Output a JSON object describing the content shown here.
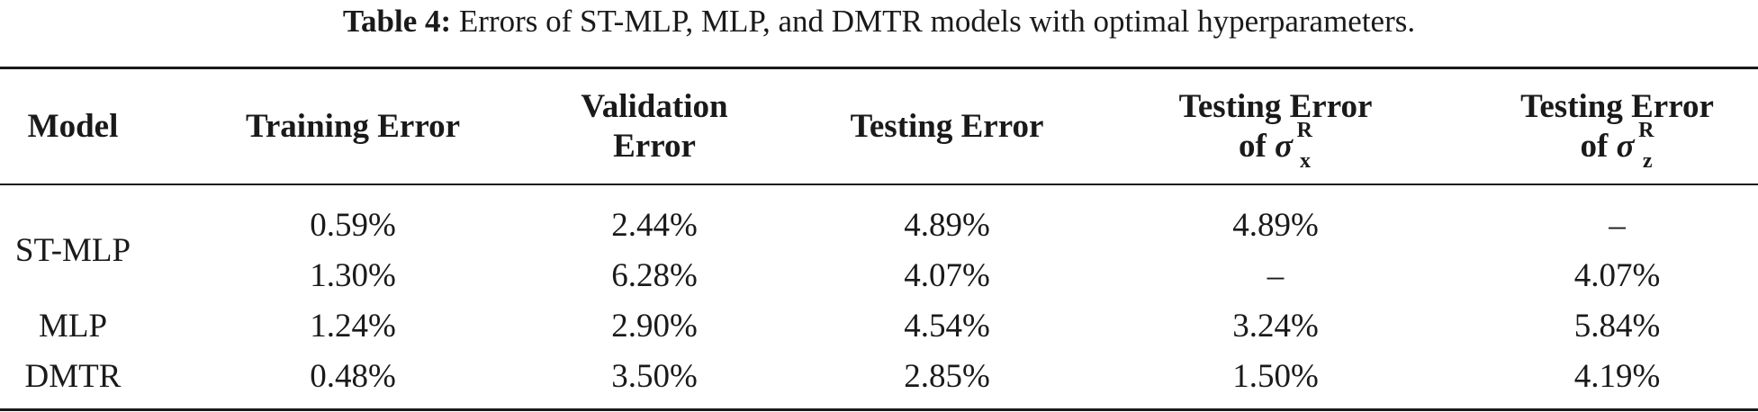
{
  "caption": {
    "label": "Table 4:",
    "text": "Errors of ST-MLP, MLP, and DMTR models with optimal hyperparameters."
  },
  "table": {
    "headers": {
      "model": "Model",
      "training": "Training Error",
      "validation_line1": "Validation",
      "validation_line2": "Error",
      "testing": "Testing Error",
      "testing_x_line1": "Testing Error",
      "testing_x_prefix": "of",
      "testing_x_symbol": "σ",
      "testing_x_sup": "R",
      "testing_x_sub": "x",
      "testing_z_line1": "Testing Error",
      "testing_z_prefix": "of",
      "testing_z_symbol": "σ",
      "testing_z_sup": "R",
      "testing_z_sub": "z"
    },
    "models": [
      "ST-MLP",
      "MLP",
      "DMTR"
    ],
    "rows": [
      [
        "0.59%",
        "2.44%",
        "4.89%",
        "4.89%",
        "–"
      ],
      [
        "1.30%",
        "6.28%",
        "4.07%",
        "–",
        "4.07%"
      ],
      [
        "1.24%",
        "2.90%",
        "4.54%",
        "3.24%",
        "5.84%"
      ],
      [
        "0.48%",
        "3.50%",
        "2.85%",
        "1.50%",
        "4.19%"
      ]
    ]
  }
}
